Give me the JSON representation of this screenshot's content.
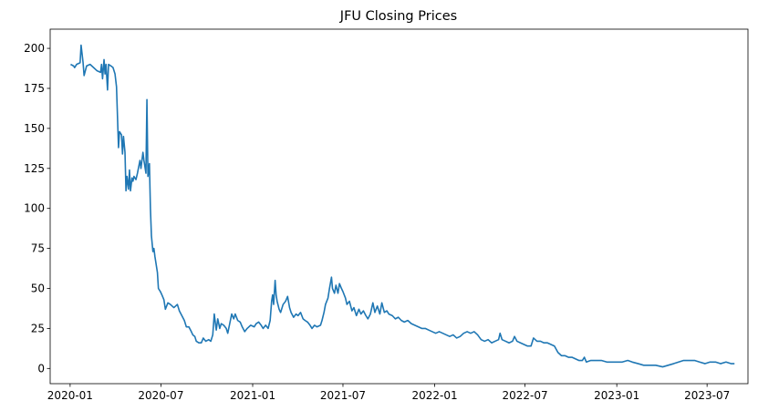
{
  "chart_data": {
    "type": "line",
    "title": "JFU Closing Prices",
    "xlabel": "",
    "ylabel": "",
    "xlim": [
      "2019-11-22",
      "2023-09-21"
    ],
    "ylim": [
      -9.5,
      212
    ],
    "grid": false,
    "legend": "none",
    "line_color": "#1f77b4",
    "x_ticks": [
      {
        "value": "2020-01-01",
        "label": "2020-01"
      },
      {
        "value": "2020-07-01",
        "label": "2020-07"
      },
      {
        "value": "2021-01-01",
        "label": "2021-01"
      },
      {
        "value": "2021-07-01",
        "label": "2021-07"
      },
      {
        "value": "2022-01-01",
        "label": "2022-01"
      },
      {
        "value": "2022-07-01",
        "label": "2022-07"
      },
      {
        "value": "2023-01-01",
        "label": "2023-01"
      },
      {
        "value": "2023-07-01",
        "label": "2023-07"
      }
    ],
    "y_ticks": [
      {
        "value": 0,
        "label": "0"
      },
      {
        "value": 25,
        "label": "25"
      },
      {
        "value": 50,
        "label": "50"
      },
      {
        "value": 75,
        "label": "75"
      },
      {
        "value": 100,
        "label": "100"
      },
      {
        "value": 125,
        "label": "125"
      },
      {
        "value": 150,
        "label": "150"
      },
      {
        "value": 175,
        "label": "175"
      },
      {
        "value": 200,
        "label": "200"
      }
    ],
    "series": [
      {
        "points": [
          [
            "2020-01-02",
            190
          ],
          [
            "2020-01-08",
            189
          ],
          [
            "2020-01-10",
            188
          ],
          [
            "2020-01-14",
            190
          ],
          [
            "2020-01-21",
            191
          ],
          [
            "2020-01-23",
            202
          ],
          [
            "2020-01-27",
            191
          ],
          [
            "2020-01-29",
            183
          ],
          [
            "2020-02-03",
            189
          ],
          [
            "2020-02-10",
            190
          ],
          [
            "2020-02-17",
            188
          ],
          [
            "2020-02-24",
            186
          ],
          [
            "2020-03-02",
            185
          ],
          [
            "2020-03-04",
            190
          ],
          [
            "2020-03-06",
            181
          ],
          [
            "2020-03-09",
            193
          ],
          [
            "2020-03-11",
            184
          ],
          [
            "2020-03-13",
            190
          ],
          [
            "2020-03-16",
            174
          ],
          [
            "2020-03-18",
            190
          ],
          [
            "2020-03-23",
            189
          ],
          [
            "2020-03-27",
            188
          ],
          [
            "2020-03-31",
            184
          ],
          [
            "2020-04-03",
            176
          ],
          [
            "2020-04-07",
            138
          ],
          [
            "2020-04-09",
            148
          ],
          [
            "2020-04-13",
            146
          ],
          [
            "2020-04-15",
            134
          ],
          [
            "2020-04-17",
            145
          ],
          [
            "2020-04-20",
            135
          ],
          [
            "2020-04-22",
            111
          ],
          [
            "2020-04-24",
            120
          ],
          [
            "2020-04-27",
            112
          ],
          [
            "2020-04-29",
            124
          ],
          [
            "2020-05-01",
            111
          ],
          [
            "2020-05-04",
            119
          ],
          [
            "2020-05-06",
            117
          ],
          [
            "2020-05-08",
            120
          ],
          [
            "2020-05-12",
            118
          ],
          [
            "2020-05-15",
            122
          ],
          [
            "2020-05-20",
            130
          ],
          [
            "2020-05-22",
            125
          ],
          [
            "2020-05-26",
            135
          ],
          [
            "2020-05-28",
            130
          ],
          [
            "2020-06-01",
            122
          ],
          [
            "2020-06-03",
            168
          ],
          [
            "2020-06-05",
            120
          ],
          [
            "2020-06-08",
            128
          ],
          [
            "2020-06-10",
            100
          ],
          [
            "2020-06-12",
            83
          ],
          [
            "2020-06-15",
            73
          ],
          [
            "2020-06-17",
            75
          ],
          [
            "2020-06-19",
            70
          ],
          [
            "2020-06-24",
            60
          ],
          [
            "2020-06-26",
            50
          ],
          [
            "2020-06-30",
            48
          ],
          [
            "2020-07-03",
            46
          ],
          [
            "2020-07-07",
            43
          ],
          [
            "2020-07-10",
            37
          ],
          [
            "2020-07-15",
            41
          ],
          [
            "2020-07-20",
            40
          ],
          [
            "2020-07-27",
            38
          ],
          [
            "2020-08-03",
            40
          ],
          [
            "2020-08-07",
            36
          ],
          [
            "2020-08-12",
            33
          ],
          [
            "2020-08-17",
            30
          ],
          [
            "2020-08-21",
            26
          ],
          [
            "2020-08-26",
            26
          ],
          [
            "2020-08-31",
            23
          ],
          [
            "2020-09-03",
            21
          ],
          [
            "2020-09-07",
            20
          ],
          [
            "2020-09-10",
            17
          ],
          [
            "2020-09-15",
            16
          ],
          [
            "2020-09-20",
            16
          ],
          [
            "2020-09-24",
            19
          ],
          [
            "2020-09-29",
            17
          ],
          [
            "2020-10-05",
            18
          ],
          [
            "2020-10-09",
            17
          ],
          [
            "2020-10-13",
            21
          ],
          [
            "2020-10-16",
            34
          ],
          [
            "2020-10-20",
            24
          ],
          [
            "2020-10-23",
            31
          ],
          [
            "2020-10-27",
            25
          ],
          [
            "2020-10-30",
            28
          ],
          [
            "2020-11-04",
            27
          ],
          [
            "2020-11-09",
            25
          ],
          [
            "2020-11-12",
            22
          ],
          [
            "2020-11-16",
            28
          ],
          [
            "2020-11-20",
            34
          ],
          [
            "2020-11-24",
            31
          ],
          [
            "2020-11-27",
            34
          ],
          [
            "2020-12-02",
            30
          ],
          [
            "2020-12-07",
            29
          ],
          [
            "2020-12-11",
            26
          ],
          [
            "2020-12-16",
            23
          ],
          [
            "2020-12-21",
            25
          ],
          [
            "2020-12-28",
            27
          ],
          [
            "2021-01-04",
            26
          ],
          [
            "2021-01-08",
            28
          ],
          [
            "2021-01-13",
            29
          ],
          [
            "2021-01-18",
            27
          ],
          [
            "2021-01-22",
            25
          ],
          [
            "2021-01-27",
            27
          ],
          [
            "2021-02-01",
            25
          ],
          [
            "2021-02-05",
            30
          ],
          [
            "2021-02-08",
            42
          ],
          [
            "2021-02-10",
            46
          ],
          [
            "2021-02-12",
            40
          ],
          [
            "2021-02-15",
            55
          ],
          [
            "2021-02-17",
            46
          ],
          [
            "2021-02-19",
            42
          ],
          [
            "2021-02-23",
            37
          ],
          [
            "2021-02-26",
            35
          ],
          [
            "2021-03-03",
            40
          ],
          [
            "2021-03-08",
            42
          ],
          [
            "2021-03-12",
            45
          ],
          [
            "2021-03-16",
            38
          ],
          [
            "2021-03-19",
            35
          ],
          [
            "2021-03-24",
            32
          ],
          [
            "2021-03-29",
            34
          ],
          [
            "2021-04-02",
            33
          ],
          [
            "2021-04-07",
            35
          ],
          [
            "2021-04-12",
            31
          ],
          [
            "2021-04-16",
            30
          ],
          [
            "2021-04-21",
            29
          ],
          [
            "2021-04-26",
            27
          ],
          [
            "2021-04-30",
            25
          ],
          [
            "2021-05-05",
            27
          ],
          [
            "2021-05-10",
            26
          ],
          [
            "2021-05-17",
            27
          ],
          [
            "2021-05-20",
            30
          ],
          [
            "2021-05-24",
            35
          ],
          [
            "2021-05-27",
            40
          ],
          [
            "2021-06-01",
            44
          ],
          [
            "2021-06-04",
            50
          ],
          [
            "2021-06-08",
            57
          ],
          [
            "2021-06-10",
            50
          ],
          [
            "2021-06-14",
            47
          ],
          [
            "2021-06-17",
            52
          ],
          [
            "2021-06-21",
            47
          ],
          [
            "2021-06-24",
            53
          ],
          [
            "2021-06-28",
            50
          ],
          [
            "2021-07-01",
            48
          ],
          [
            "2021-07-06",
            44
          ],
          [
            "2021-07-09",
            40
          ],
          [
            "2021-07-14",
            42
          ],
          [
            "2021-07-19",
            36
          ],
          [
            "2021-07-23",
            38
          ],
          [
            "2021-07-28",
            33
          ],
          [
            "2021-08-02",
            37
          ],
          [
            "2021-08-06",
            34
          ],
          [
            "2021-08-11",
            36
          ],
          [
            "2021-08-16",
            33
          ],
          [
            "2021-08-20",
            31
          ],
          [
            "2021-08-25",
            34
          ],
          [
            "2021-08-30",
            41
          ],
          [
            "2021-09-03",
            35
          ],
          [
            "2021-09-08",
            39
          ],
          [
            "2021-09-13",
            34
          ],
          [
            "2021-09-17",
            41
          ],
          [
            "2021-09-22",
            35
          ],
          [
            "2021-09-27",
            36
          ],
          [
            "2021-10-01",
            34
          ],
          [
            "2021-10-08",
            33
          ],
          [
            "2021-10-14",
            31
          ],
          [
            "2021-10-20",
            32
          ],
          [
            "2021-10-26",
            30
          ],
          [
            "2021-11-01",
            29
          ],
          [
            "2021-11-08",
            30
          ],
          [
            "2021-11-15",
            28
          ],
          [
            "2021-11-22",
            27
          ],
          [
            "2021-11-29",
            26
          ],
          [
            "2021-12-06",
            25
          ],
          [
            "2021-12-13",
            25
          ],
          [
            "2021-12-20",
            24
          ],
          [
            "2021-12-27",
            23
          ],
          [
            "2022-01-03",
            22
          ],
          [
            "2022-01-10",
            23
          ],
          [
            "2022-01-17",
            22
          ],
          [
            "2022-01-24",
            21
          ],
          [
            "2022-01-31",
            20
          ],
          [
            "2022-02-07",
            21
          ],
          [
            "2022-02-14",
            19
          ],
          [
            "2022-02-21",
            20
          ],
          [
            "2022-02-28",
            22
          ],
          [
            "2022-03-07",
            23
          ],
          [
            "2022-03-14",
            22
          ],
          [
            "2022-03-21",
            23
          ],
          [
            "2022-03-28",
            21
          ],
          [
            "2022-04-04",
            18
          ],
          [
            "2022-04-11",
            17
          ],
          [
            "2022-04-18",
            18
          ],
          [
            "2022-04-25",
            16
          ],
          [
            "2022-05-02",
            17
          ],
          [
            "2022-05-09",
            18
          ],
          [
            "2022-05-12",
            22
          ],
          [
            "2022-05-16",
            18
          ],
          [
            "2022-05-23",
            17
          ],
          [
            "2022-05-30",
            16
          ],
          [
            "2022-06-06",
            17
          ],
          [
            "2022-06-10",
            20
          ],
          [
            "2022-06-15",
            17
          ],
          [
            "2022-06-22",
            16
          ],
          [
            "2022-06-29",
            15
          ],
          [
            "2022-07-06",
            14
          ],
          [
            "2022-07-13",
            14
          ],
          [
            "2022-07-18",
            19
          ],
          [
            "2022-07-25",
            17
          ],
          [
            "2022-08-01",
            17
          ],
          [
            "2022-08-08",
            16
          ],
          [
            "2022-08-15",
            16
          ],
          [
            "2022-08-22",
            15
          ],
          [
            "2022-08-29",
            14
          ],
          [
            "2022-09-05",
            10
          ],
          [
            "2022-09-12",
            8
          ],
          [
            "2022-09-19",
            8
          ],
          [
            "2022-09-26",
            7
          ],
          [
            "2022-10-03",
            7
          ],
          [
            "2022-10-10",
            6
          ],
          [
            "2022-10-17",
            5
          ],
          [
            "2022-10-24",
            5
          ],
          [
            "2022-10-28",
            7
          ],
          [
            "2022-11-01",
            4
          ],
          [
            "2022-11-10",
            5
          ],
          [
            "2022-11-21",
            5
          ],
          [
            "2022-12-01",
            5
          ],
          [
            "2022-12-12",
            4
          ],
          [
            "2022-12-22",
            4
          ],
          [
            "2023-01-03",
            4
          ],
          [
            "2023-01-12",
            4
          ],
          [
            "2023-01-23",
            5
          ],
          [
            "2023-02-01",
            4
          ],
          [
            "2023-02-13",
            3
          ],
          [
            "2023-02-24",
            2
          ],
          [
            "2023-03-08",
            2
          ],
          [
            "2023-03-20",
            2
          ],
          [
            "2023-04-03",
            1
          ],
          [
            "2023-04-14",
            2
          ],
          [
            "2023-04-25",
            3
          ],
          [
            "2023-05-05",
            4
          ],
          [
            "2023-05-15",
            5
          ],
          [
            "2023-05-26",
            5
          ],
          [
            "2023-06-06",
            5
          ],
          [
            "2023-06-16",
            4
          ],
          [
            "2023-06-27",
            3
          ],
          [
            "2023-07-07",
            4
          ],
          [
            "2023-07-18",
            4
          ],
          [
            "2023-07-28",
            3
          ],
          [
            "2023-08-08",
            4
          ],
          [
            "2023-08-18",
            3
          ],
          [
            "2023-08-25",
            3
          ]
        ]
      }
    ]
  }
}
